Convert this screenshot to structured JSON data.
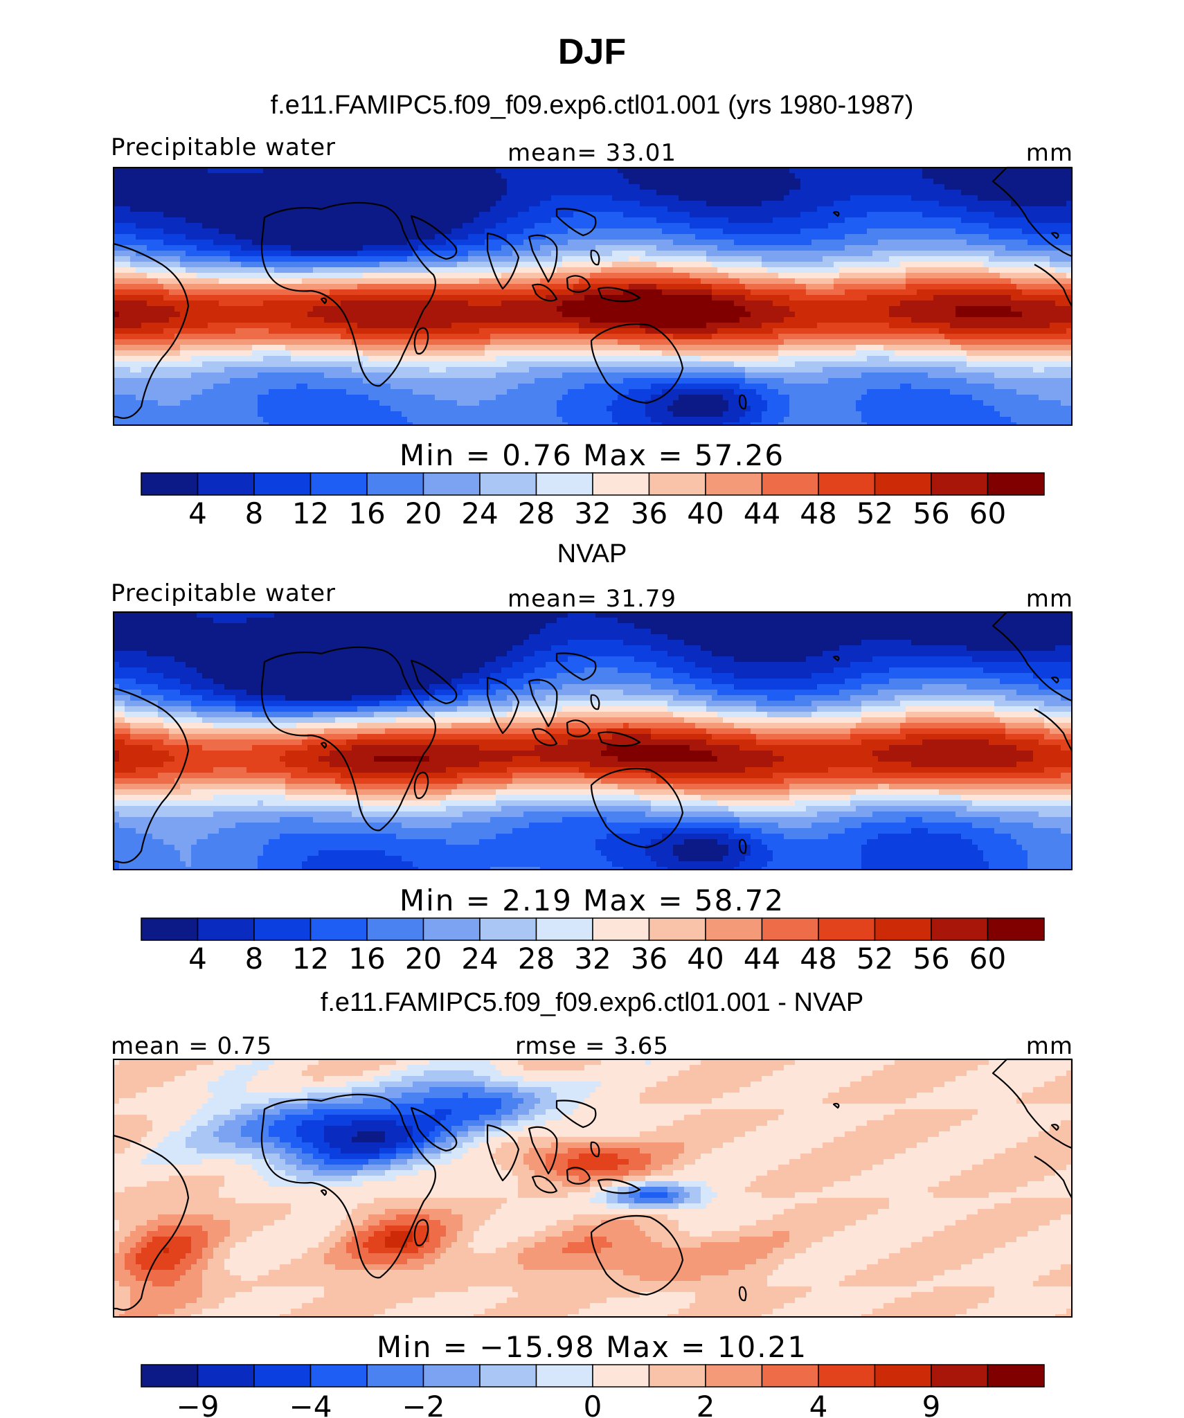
{
  "title": "DJF",
  "colors": {
    "precip": [
      "#0b1a86",
      "#0a2bbf",
      "#0c3fe0",
      "#1f5ef5",
      "#4a82f2",
      "#7ba3f2",
      "#a9c6f5",
      "#d6e7fb",
      "#fde6d9",
      "#f9c3aa",
      "#f49a78",
      "#ee6c48",
      "#e2431c",
      "#cd2a08",
      "#a81509",
      "#800000"
    ],
    "diff": [
      "#0b1a86",
      "#0a2bbf",
      "#0c3fe0",
      "#1f5ef5",
      "#4a82f2",
      "#7ba3f2",
      "#a9c6f5",
      "#d6e7fb",
      "#fde6d9",
      "#f9c3aa",
      "#f49a78",
      "#ee6c48",
      "#e2431c",
      "#cd2a08",
      "#a81509",
      "#800000"
    ]
  },
  "panels": [
    {
      "header": "f.e11.FAMIPC5.f09_f09.exp6.ctl01.001 (yrs 1980-1987)",
      "left_label": "Precipitable water",
      "center_label": "mean=   33.01",
      "units": "mm",
      "minmax": "Min  =     0.76  Max  =    57.26",
      "colorbar_ticks": [
        "4",
        "8",
        "12",
        "16",
        "20",
        "24",
        "28",
        "32",
        "36",
        "40",
        "44",
        "48",
        "52",
        "56",
        "60"
      ],
      "palette": "precip",
      "field": "model"
    },
    {
      "header": "NVAP",
      "left_label": "Precipitable water",
      "center_label": "mean=   31.79",
      "units": "mm",
      "minmax": "Min  =     2.19  Max  =    58.72",
      "colorbar_ticks": [
        "4",
        "8",
        "12",
        "16",
        "20",
        "24",
        "28",
        "32",
        "36",
        "40",
        "44",
        "48",
        "52",
        "56",
        "60"
      ],
      "palette": "precip",
      "field": "obs"
    },
    {
      "header": "f.e11.FAMIPC5.f09_f09.exp6.ctl01.001 - NVAP",
      "left_label": "mean =    0.75",
      "center_label": "rmse =    3.65",
      "units": "mm",
      "minmax": "Min  = −15.98  Max  =    10.21",
      "colorbar_ticks": [
        "−9",
        "−4",
        "−2",
        "0",
        "2",
        "4",
        "9"
      ],
      "palette": "diff",
      "field": "diff"
    }
  ]
}
